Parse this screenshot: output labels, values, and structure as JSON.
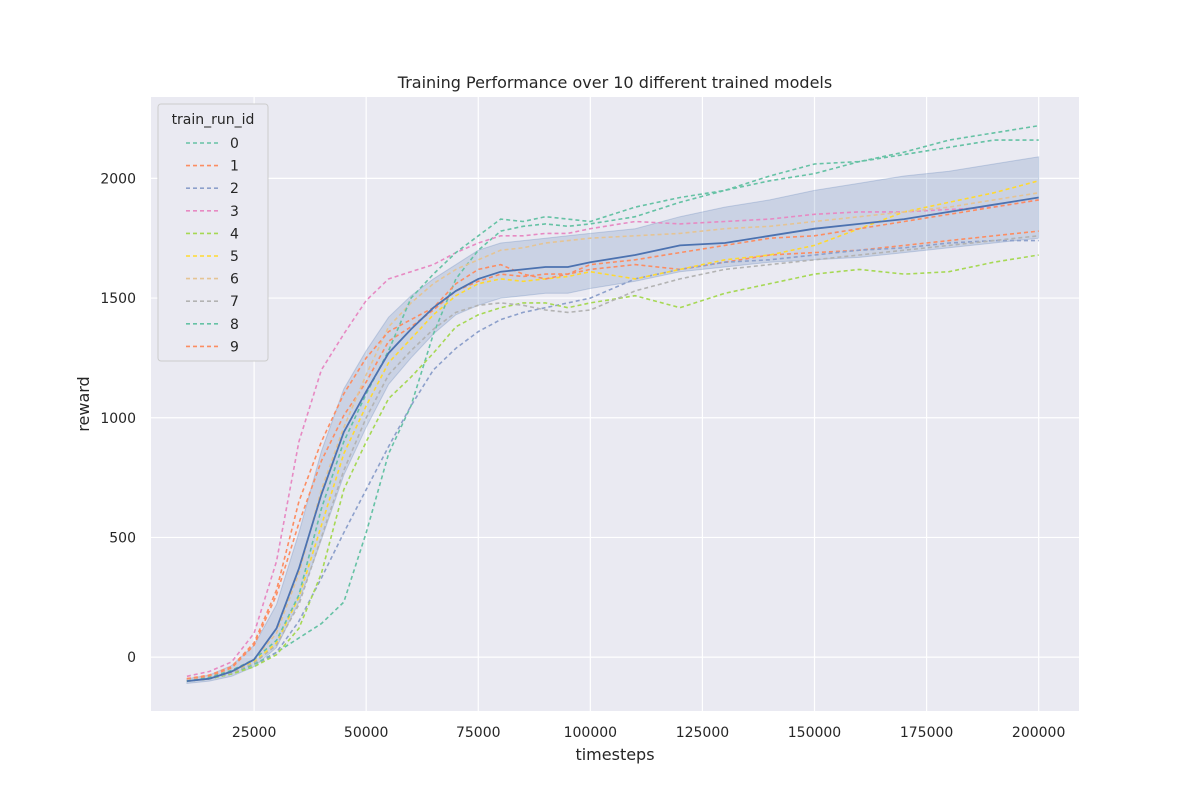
{
  "chart_data": {
    "type": "line",
    "title": "Training Performance over 10 different trained models",
    "xlabel": "timesteps",
    "ylabel": "reward",
    "xlim": [
      2000,
      209000
    ],
    "ylim": [
      -225,
      2340
    ],
    "xticks": [
      25000,
      50000,
      75000,
      100000,
      125000,
      150000,
      175000,
      200000
    ],
    "xtick_labels": [
      "25000",
      "50000",
      "75000",
      "100000",
      "125000",
      "150000",
      "175000",
      "200000"
    ],
    "yticks": [
      0,
      500,
      1000,
      1500,
      2000
    ],
    "ytick_labels": [
      "0",
      "500",
      "1000",
      "1500",
      "2000"
    ],
    "grid": true,
    "legend": {
      "title": "train_run_id",
      "placement": "top-left"
    },
    "x": [
      10000,
      15000,
      20000,
      25000,
      30000,
      35000,
      40000,
      45000,
      50000,
      55000,
      60000,
      65000,
      70000,
      75000,
      80000,
      85000,
      90000,
      95000,
      100000,
      110000,
      120000,
      130000,
      140000,
      150000,
      160000,
      170000,
      180000,
      190000,
      200000
    ],
    "series": [
      {
        "name": "0",
        "color": "#66c2a5",
        "style": "dashed",
        "values": [
          -100,
          -90,
          -70,
          -30,
          20,
          80,
          140,
          230,
          520,
          850,
          1050,
          1350,
          1580,
          1700,
          1780,
          1800,
          1810,
          1800,
          1810,
          1840,
          1900,
          1950,
          1990,
          2020,
          2070,
          2100,
          2130,
          2160,
          2160
        ]
      },
      {
        "name": "1",
        "color": "#fc8d62",
        "style": "dashed",
        "values": [
          -90,
          -80,
          -45,
          50,
          260,
          560,
          820,
          1010,
          1150,
          1320,
          1380,
          1450,
          1530,
          1570,
          1600,
          1590,
          1600,
          1600,
          1620,
          1640,
          1620,
          1650,
          1680,
          1690,
          1700,
          1720,
          1740,
          1760,
          1780
        ]
      },
      {
        "name": "2",
        "color": "#8da0cb",
        "style": "dashed",
        "values": [
          -100,
          -90,
          -70,
          -40,
          20,
          150,
          330,
          520,
          700,
          880,
          1050,
          1200,
          1290,
          1360,
          1410,
          1440,
          1460,
          1480,
          1500,
          1580,
          1620,
          1650,
          1660,
          1680,
          1700,
          1710,
          1730,
          1740,
          1740
        ]
      },
      {
        "name": "3",
        "color": "#e78ac3",
        "style": "dashed",
        "values": [
          -80,
          -60,
          -20,
          100,
          400,
          900,
          1200,
          1350,
          1490,
          1580,
          1610,
          1640,
          1690,
          1730,
          1760,
          1760,
          1770,
          1770,
          1790,
          1820,
          1810,
          1820,
          1830,
          1850,
          1860,
          1860,
          1870,
          1880,
          1910
        ]
      },
      {
        "name": "4",
        "color": "#a6d854",
        "style": "dashed",
        "values": [
          -100,
          -90,
          -70,
          -40,
          10,
          120,
          350,
          700,
          900,
          1080,
          1170,
          1270,
          1380,
          1430,
          1460,
          1480,
          1480,
          1460,
          1480,
          1510,
          1460,
          1520,
          1560,
          1600,
          1620,
          1600,
          1610,
          1650,
          1680
        ]
      },
      {
        "name": "5",
        "color": "#ffd92f",
        "style": "dashed",
        "values": [
          -100,
          -90,
          -60,
          -20,
          60,
          250,
          550,
          850,
          1050,
          1230,
          1330,
          1430,
          1510,
          1560,
          1580,
          1570,
          1580,
          1590,
          1610,
          1580,
          1620,
          1660,
          1680,
          1720,
          1790,
          1860,
          1900,
          1940,
          1990
        ]
      },
      {
        "name": "6",
        "color": "#e5c494",
        "style": "dashed",
        "values": [
          -100,
          -85,
          -55,
          -10,
          100,
          350,
          700,
          960,
          1180,
          1380,
          1480,
          1560,
          1620,
          1660,
          1700,
          1710,
          1730,
          1740,
          1750,
          1760,
          1770,
          1790,
          1800,
          1820,
          1840,
          1860,
          1880,
          1910,
          1940
        ]
      },
      {
        "name": "7",
        "color": "#b3b3b3",
        "style": "dashed",
        "values": [
          -100,
          -90,
          -65,
          -25,
          50,
          220,
          500,
          780,
          1000,
          1180,
          1280,
          1370,
          1440,
          1470,
          1480,
          1470,
          1450,
          1440,
          1450,
          1530,
          1580,
          1620,
          1640,
          1660,
          1680,
          1700,
          1720,
          1740,
          1760
        ]
      },
      {
        "name": "8",
        "color": "#66c2a5",
        "style": "dashed",
        "values": [
          -100,
          -85,
          -55,
          -10,
          70,
          260,
          620,
          900,
          1100,
          1280,
          1500,
          1600,
          1690,
          1760,
          1830,
          1820,
          1840,
          1830,
          1820,
          1880,
          1920,
          1950,
          2010,
          2060,
          2070,
          2110,
          2160,
          2190,
          2220
        ]
      },
      {
        "name": "9",
        "color": "#fc8d62",
        "style": "dashed",
        "values": [
          -90,
          -75,
          -40,
          60,
          280,
          650,
          900,
          1100,
          1250,
          1360,
          1410,
          1460,
          1560,
          1620,
          1640,
          1600,
          1580,
          1600,
          1640,
          1660,
          1690,
          1720,
          1750,
          1760,
          1790,
          1820,
          1850,
          1880,
          1910
        ]
      }
    ],
    "mean": {
      "color": "#4c72b0",
      "values": [
        -100,
        -90,
        -60,
        -10,
        120,
        370,
        680,
        940,
        1110,
        1270,
        1370,
        1460,
        1530,
        1580,
        1610,
        1620,
        1630,
        1630,
        1650,
        1680,
        1720,
        1730,
        1760,
        1790,
        1810,
        1830,
        1860,
        1890,
        1920
      ],
      "ci_lower": [
        -110,
        -100,
        -80,
        -40,
        40,
        230,
        490,
        760,
        960,
        1140,
        1250,
        1350,
        1430,
        1470,
        1500,
        1510,
        1520,
        1520,
        1540,
        1570,
        1610,
        1630,
        1650,
        1660,
        1670,
        1690,
        1710,
        1730,
        1750
      ],
      "ci_upper": [
        -90,
        -75,
        -35,
        50,
        220,
        520,
        860,
        1120,
        1280,
        1420,
        1510,
        1580,
        1640,
        1700,
        1730,
        1740,
        1750,
        1760,
        1770,
        1790,
        1840,
        1880,
        1910,
        1950,
        1980,
        2010,
        2030,
        2060,
        2090
      ]
    }
  }
}
